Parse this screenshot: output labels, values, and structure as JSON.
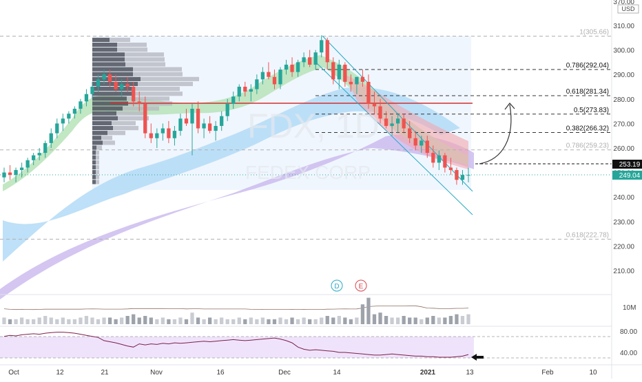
{
  "watermark": {
    "ticker": "FDX, 1D",
    "company": "FEDEX CORP"
  },
  "price_axis": {
    "currency": "USD",
    "ticks": [
      210,
      220,
      230,
      240,
      250,
      260,
      270,
      280,
      290,
      300,
      310
    ],
    "top_partial_label": "370.00",
    "current_price_label": "249.04",
    "target_label": "253.19"
  },
  "time_axis": {
    "labels": [
      {
        "text": "Oct",
        "bold": false
      },
      {
        "text": "12",
        "bold": false
      },
      {
        "text": "21",
        "bold": false
      },
      {
        "text": "Nov",
        "bold": false
      },
      {
        "text": "16",
        "bold": false
      },
      {
        "text": "Dec",
        "bold": false
      },
      {
        "text": "14",
        "bold": false
      },
      {
        "text": "2021",
        "bold": true
      },
      {
        "text": "13",
        "bold": false
      },
      {
        "text": "Feb",
        "bold": false
      },
      {
        "text": "10",
        "bold": false
      }
    ]
  },
  "fib_levels": [
    {
      "label": "1(305.66)",
      "price": 305.66,
      "faded": true
    },
    {
      "label": "0.786(292.04)",
      "price": 292.04,
      "faded": false
    },
    {
      "label": "0.618(281.34)",
      "price": 281.34,
      "faded": false
    },
    {
      "label": "0.5(273.83)",
      "price": 273.83,
      "faded": false
    },
    {
      "label": "0.382(266.32)",
      "price": 266.32,
      "faded": false
    },
    {
      "label": "0.786(259.23)",
      "price": 259.23,
      "faded": true
    },
    {
      "label": "0.618(222.78)",
      "price": 222.78,
      "faded": true
    }
  ],
  "events": [
    {
      "label": "D",
      "color": "#26a9c6"
    },
    {
      "label": "E",
      "color": "#d9434b"
    }
  ],
  "volume_panel": {
    "label": "10M"
  },
  "rsi_panel": {
    "ticks": [
      "80.00",
      "40.00"
    ]
  },
  "colors": {
    "up": "#26a69a",
    "down": "#ef5350",
    "resistance_line": "#d32f2f",
    "channel": "#26a9c6",
    "rsi_line": "#7b1f4a",
    "ema_fast_band": "#a5d6a7",
    "ema_mid_band": "#90caf9",
    "ema_slow_band": "#b39ddb"
  },
  "chart_data": {
    "type": "candlestick",
    "title": "FDX, 1D",
    "subtitle": "FEDEX CORP",
    "ylim": [
      200,
      310
    ],
    "ohlc_approx": [
      [
        248,
        252,
        246,
        250
      ],
      [
        250,
        253,
        247,
        249
      ],
      [
        249,
        252,
        246,
        251
      ],
      [
        251,
        254,
        248,
        252
      ],
      [
        252,
        256,
        250,
        255
      ],
      [
        255,
        258,
        253,
        257
      ],
      [
        257,
        260,
        255,
        258
      ],
      [
        258,
        263,
        256,
        262
      ],
      [
        262,
        268,
        260,
        266
      ],
      [
        266,
        272,
        264,
        270
      ],
      [
        270,
        274,
        267,
        272
      ],
      [
        272,
        275,
        270,
        274
      ],
      [
        274,
        277,
        272,
        276
      ],
      [
        276,
        280,
        274,
        279
      ],
      [
        279,
        284,
        277,
        282
      ],
      [
        282,
        287,
        280,
        285
      ],
      [
        285,
        290,
        283,
        288
      ],
      [
        288,
        292,
        286,
        290
      ],
      [
        290,
        292,
        285,
        287
      ],
      [
        287,
        290,
        283,
        284
      ],
      [
        284,
        288,
        281,
        286
      ],
      [
        286,
        289,
        283,
        285
      ],
      [
        285,
        287,
        277,
        279
      ],
      [
        279,
        283,
        275,
        278
      ],
      [
        278,
        281,
        264,
        266
      ],
      [
        266,
        270,
        262,
        264
      ],
      [
        264,
        268,
        260,
        266
      ],
      [
        266,
        270,
        263,
        268
      ],
      [
        268,
        271,
        262,
        264
      ],
      [
        264,
        269,
        261,
        267
      ],
      [
        267,
        274,
        265,
        272
      ],
      [
        272,
        276,
        269,
        270
      ],
      [
        270,
        278,
        257,
        276
      ],
      [
        276,
        279,
        266,
        268
      ],
      [
        268,
        272,
        264,
        270
      ],
      [
        270,
        273,
        266,
        267
      ],
      [
        267,
        271,
        263,
        269
      ],
      [
        269,
        275,
        267,
        273
      ],
      [
        273,
        280,
        271,
        278
      ],
      [
        278,
        283,
        276,
        281
      ],
      [
        281,
        286,
        279,
        285
      ],
      [
        285,
        287,
        281,
        283
      ],
      [
        283,
        286,
        279,
        284
      ],
      [
        284,
        290,
        282,
        288
      ],
      [
        288,
        293,
        286,
        291
      ],
      [
        291,
        295,
        288,
        289
      ],
      [
        289,
        292,
        284,
        286
      ],
      [
        286,
        293,
        284,
        292
      ],
      [
        292,
        296,
        290,
        294
      ],
      [
        294,
        297,
        289,
        291
      ],
      [
        291,
        296,
        289,
        295
      ],
      [
        295,
        299,
        293,
        297
      ],
      [
        297,
        300,
        293,
        294
      ],
      [
        294,
        300,
        292,
        299
      ],
      [
        299,
        306,
        297,
        304
      ],
      [
        304,
        305,
        292,
        295
      ],
      [
        295,
        297,
        286,
        288
      ],
      [
        288,
        296,
        284,
        294
      ],
      [
        294,
        295,
        285,
        287
      ],
      [
        287,
        290,
        283,
        286
      ],
      [
        286,
        289,
        282,
        289
      ],
      [
        289,
        292,
        285,
        287
      ],
      [
        287,
        290,
        276,
        278
      ],
      [
        278,
        283,
        274,
        277
      ],
      [
        277,
        280,
        270,
        272
      ],
      [
        272,
        275,
        268,
        269
      ],
      [
        269,
        273,
        265,
        270
      ],
      [
        270,
        274,
        266,
        272
      ],
      [
        272,
        274,
        266,
        268
      ],
      [
        268,
        271,
        262,
        264
      ],
      [
        264,
        267,
        259,
        261
      ],
      [
        261,
        265,
        258,
        263
      ],
      [
        263,
        265,
        256,
        258
      ],
      [
        258,
        261,
        252,
        254
      ],
      [
        254,
        259,
        251,
        257
      ],
      [
        257,
        258,
        250,
        252
      ],
      [
        252,
        256,
        249,
        251
      ],
      [
        251,
        252,
        245,
        247
      ],
      [
        247,
        251,
        245,
        249
      ],
      [
        249,
        252,
        246,
        249
      ]
    ],
    "volume_approx": [
      4,
      3,
      3,
      4,
      3,
      3,
      4,
      5,
      4,
      3,
      4,
      3,
      3,
      4,
      5,
      4,
      3,
      4,
      4,
      3,
      4,
      5,
      6,
      4,
      5,
      4,
      3,
      4,
      3,
      3,
      4,
      3,
      7,
      4,
      3,
      4,
      3,
      4,
      3,
      3,
      4,
      3,
      4,
      3,
      4,
      3,
      3,
      4,
      3,
      4,
      3,
      4,
      3,
      3,
      4,
      5,
      4,
      5,
      4,
      3,
      4,
      12,
      16,
      6,
      7,
      5,
      4,
      4,
      5,
      4,
      4,
      3,
      4,
      5,
      4,
      4,
      5,
      6,
      5,
      6
    ],
    "rsi_approx": [
      70,
      72,
      71,
      73,
      74,
      75,
      74,
      76,
      77,
      78,
      78,
      77,
      76,
      74,
      72,
      70,
      68,
      62,
      60,
      58,
      55,
      52,
      50,
      56,
      54,
      56,
      55,
      57,
      56,
      58,
      57,
      58,
      59,
      60,
      61,
      60,
      61,
      62,
      63,
      64,
      63,
      62,
      63,
      64,
      65,
      66,
      67,
      65,
      62,
      58,
      50,
      46,
      44,
      45,
      44,
      43,
      42,
      40,
      40,
      39,
      38,
      37,
      36,
      35,
      35,
      36,
      37,
      36,
      35,
      34,
      33,
      33,
      32,
      32,
      31,
      31,
      31,
      32,
      33,
      36
    ]
  }
}
